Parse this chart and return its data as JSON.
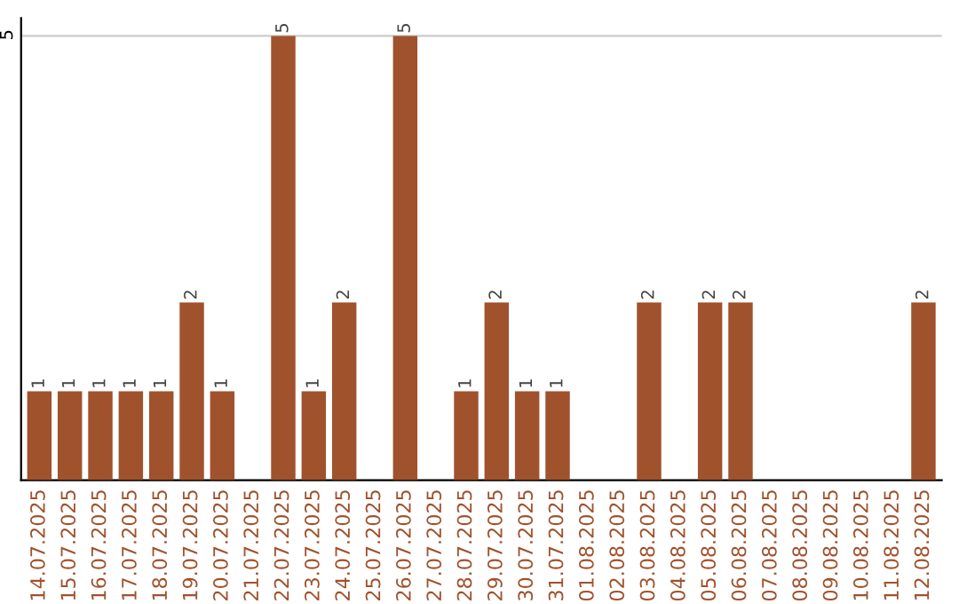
{
  "chart_data": {
    "type": "bar",
    "categories": [
      "14.07.2025",
      "15.07.2025",
      "16.07.2025",
      "17.07.2025",
      "18.07.2025",
      "19.07.2025",
      "20.07.2025",
      "21.07.2025",
      "22.07.2025",
      "23.07.2025",
      "24.07.2025",
      "25.07.2025",
      "26.07.2025",
      "27.07.2025",
      "28.07.2025",
      "29.07.2025",
      "30.07.2025",
      "31.07.2025",
      "01.08.2025",
      "02.08.2025",
      "03.08.2025",
      "04.08.2025",
      "05.08.2025",
      "06.08.2025",
      "07.08.2025",
      "08.08.2025",
      "09.08.2025",
      "10.08.2025",
      "11.08.2025",
      "12.08.2025"
    ],
    "values": [
      1,
      1,
      1,
      1,
      1,
      2,
      1,
      0,
      5,
      1,
      2,
      0,
      5,
      0,
      1,
      2,
      1,
      1,
      0,
      0,
      2,
      0,
      2,
      2,
      0,
      0,
      0,
      0,
      0,
      2
    ],
    "value_labels": [
      "1",
      "1",
      "1",
      "1",
      "1",
      "2",
      "1",
      null,
      "5",
      "1",
      "2",
      null,
      "5",
      null,
      "1",
      "2",
      "1",
      "1",
      null,
      null,
      "2",
      null,
      "2",
      "2",
      null,
      null,
      null,
      null,
      null,
      "2"
    ],
    "color": "#a0522d",
    "ylim": [
      0,
      5.2
    ],
    "yticks": [
      5
    ],
    "grid": "y"
  }
}
